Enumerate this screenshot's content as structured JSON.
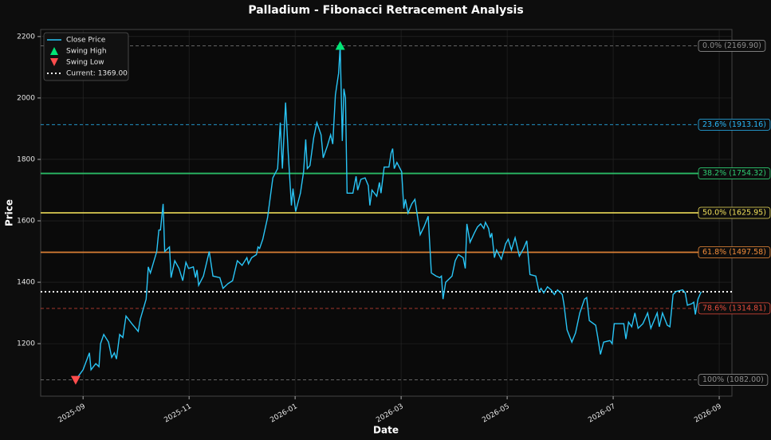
{
  "chart_data": {
    "type": "line",
    "title": "Palladium - Fibonacci Retracement Analysis",
    "x_label": "Date",
    "y_label": "Price",
    "xlim": [
      -0.8,
      12.24
    ],
    "ylim": [
      1029,
      2223
    ],
    "xticks": [
      {
        "value": 0,
        "label": "2025-09"
      },
      {
        "value": 2,
        "label": "2025-11"
      },
      {
        "value": 4,
        "label": "2026-01"
      },
      {
        "value": 6,
        "label": "2026-03"
      },
      {
        "value": 8,
        "label": "2026-05"
      },
      {
        "value": 10,
        "label": "2026-07"
      },
      {
        "value": 12,
        "label": "2026-09"
      }
    ],
    "yticks": [
      1200,
      1400,
      1600,
      1800,
      2000,
      2200
    ],
    "grid": true,
    "legend": "upper left",
    "series": [
      {
        "name": "Close Price",
        "color": "#29c5f6",
        "x": [
          -0.14,
          0,
          0.12,
          0.15,
          0.24,
          0.3,
          0.33,
          0.39,
          0.48,
          0.54,
          0.59,
          0.63,
          0.69,
          0.75,
          0.81,
          0.92,
          1.04,
          1.08,
          1.19,
          1.23,
          1.27,
          1.39,
          1.43,
          1.46,
          1.51,
          1.54,
          1.63,
          1.66,
          1.73,
          1.81,
          1.88,
          1.94,
          1.99,
          2.08,
          2.12,
          2.15,
          2.18,
          2.27,
          2.38,
          2.45,
          2.58,
          2.64,
          2.73,
          2.82,
          2.91,
          3.0,
          3.09,
          3.12,
          3.18,
          3.27,
          3.3,
          3.33,
          3.39,
          3.48,
          3.58,
          3.67,
          3.72,
          3.76,
          3.82,
          3.87,
          3.93,
          3.96,
          4.01,
          4.1,
          4.16,
          4.2,
          4.23,
          4.28,
          4.35,
          4.41,
          4.49,
          4.53,
          4.61,
          4.67,
          4.71,
          4.76,
          4.82,
          4.85,
          4.89,
          4.92,
          4.95,
          4.98,
          5.09,
          5.15,
          5.18,
          5.24,
          5.32,
          5.38,
          5.41,
          5.45,
          5.54,
          5.59,
          5.62,
          5.68,
          5.77,
          5.81,
          5.84,
          5.87,
          5.92,
          6.01,
          6.05,
          6.08,
          6.13,
          6.2,
          6.26,
          6.36,
          6.43,
          6.51,
          6.57,
          6.66,
          6.73,
          6.76,
          6.79,
          6.84,
          6.9,
          6.96,
          7.02,
          7.08,
          7.17,
          7.21,
          7.24,
          7.3,
          7.38,
          7.44,
          7.5,
          7.56,
          7.59,
          7.65,
          7.68,
          7.71,
          7.76,
          7.8,
          7.89,
          7.94,
          7.97,
          8.02,
          8.08,
          8.15,
          8.23,
          8.31,
          8.37,
          8.43,
          8.54,
          8.6,
          8.64,
          8.69,
          8.76,
          8.83,
          8.89,
          8.95,
          9.04,
          9.07,
          9.13,
          9.22,
          9.29,
          9.37,
          9.46,
          9.5,
          9.55,
          9.67,
          9.71,
          9.76,
          9.82,
          9.94,
          9.98,
          10.02,
          10.11,
          10.2,
          10.24,
          10.29,
          10.35,
          10.41,
          10.47,
          10.56,
          10.65,
          10.71,
          10.77,
          10.83,
          10.87,
          10.93,
          11.02,
          11.07,
          11.13,
          11.19,
          11.31,
          11.36,
          11.4,
          11.48,
          11.52,
          11.55,
          11.6,
          11.66
        ],
        "values": [
          1082,
          1115,
          1170,
          1115,
          1135,
          1125,
          1200,
          1230,
          1205,
          1155,
          1170,
          1150,
          1230,
          1220,
          1290,
          1265,
          1240,
          1280,
          1345,
          1450,
          1430,
          1500,
          1570,
          1570,
          1655,
          1500,
          1515,
          1415,
          1470,
          1445,
          1405,
          1465,
          1445,
          1450,
          1415,
          1440,
          1390,
          1420,
          1500,
          1420,
          1415,
          1380,
          1395,
          1405,
          1470,
          1455,
          1480,
          1460,
          1480,
          1490,
          1515,
          1510,
          1540,
          1610,
          1740,
          1770,
          1920,
          1770,
          1985,
          1820,
          1650,
          1705,
          1630,
          1690,
          1760,
          1865,
          1770,
          1780,
          1870,
          1920,
          1880,
          1805,
          1845,
          1880,
          1850,
          2010,
          2080,
          2169.9,
          1860,
          2030,
          2000,
          1690,
          1690,
          1745,
          1700,
          1735,
          1740,
          1715,
          1650,
          1700,
          1680,
          1725,
          1690,
          1775,
          1775,
          1820,
          1835,
          1770,
          1790,
          1760,
          1640,
          1670,
          1625,
          1655,
          1670,
          1555,
          1580,
          1615,
          1430,
          1420,
          1415,
          1420,
          1345,
          1400,
          1410,
          1420,
          1470,
          1490,
          1480,
          1445,
          1590,
          1530,
          1560,
          1580,
          1590,
          1575,
          1595,
          1575,
          1545,
          1560,
          1480,
          1505,
          1475,
          1505,
          1525,
          1540,
          1505,
          1545,
          1485,
          1510,
          1535,
          1425,
          1420,
          1370,
          1380,
          1365,
          1385,
          1375,
          1360,
          1375,
          1360,
          1330,
          1245,
          1205,
          1235,
          1300,
          1345,
          1350,
          1275,
          1260,
          1220,
          1165,
          1205,
          1210,
          1200,
          1265,
          1265,
          1265,
          1215,
          1270,
          1255,
          1300,
          1250,
          1265,
          1300,
          1250,
          1275,
          1300,
          1255,
          1300,
          1260,
          1255,
          1360,
          1370,
          1375,
          1365,
          1325,
          1330,
          1335,
          1295,
          1345,
          1369
        ]
      },
      {
        "name": "Swing High",
        "color": "#00e676",
        "marker": "up",
        "x": [
          4.85
        ],
        "values": [
          2169.9
        ]
      },
      {
        "name": "Swing Low",
        "color": "#ff4d4d",
        "marker": "down",
        "x": [
          -0.14
        ],
        "values": [
          1082.0
        ]
      }
    ],
    "current": {
      "name": "Current: 1369.00",
      "value": 1369.0,
      "color": "#ffffff"
    },
    "fib_levels": [
      {
        "label": "0.0% (2169.90)",
        "value": 2169.9,
        "color": "#8c8c8c",
        "style": "dashed"
      },
      {
        "label": "23.6% (1913.16)",
        "value": 1913.16,
        "color": "#29b6f6",
        "style": "dashed"
      },
      {
        "label": "38.2% (1754.32)",
        "value": 1754.32,
        "color": "#2ecc71",
        "style": "solid"
      },
      {
        "label": "50.0% (1625.95)",
        "value": 1625.95,
        "color": "#f1e05a",
        "style": "solid"
      },
      {
        "label": "61.8% (1497.58)",
        "value": 1497.58,
        "color": "#f08c3a",
        "style": "solid"
      },
      {
        "label": "78.6% (1314.81)",
        "value": 1314.81,
        "color": "#e74c3c",
        "style": "dashed"
      },
      {
        "label": "100% (1082.00)",
        "value": 1082.0,
        "color": "#8c8c8c",
        "style": "dashed"
      }
    ]
  }
}
